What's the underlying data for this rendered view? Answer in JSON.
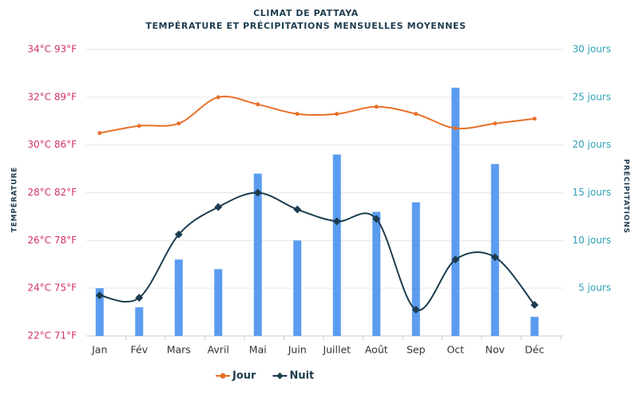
{
  "chart_data": {
    "type": "climate-combo",
    "title": "CLIMAT DE PATTAYA",
    "subtitle": "TEMPÉRATURE ET PRÉCIPITATIONS MENSUELLES MOYENNES",
    "y_label": "TEMPÉRATURE",
    "y2_label": "PRÉCIPITATIONS",
    "categories": [
      "Jan",
      "Fév",
      "Mars",
      "Avril",
      "Mai",
      "Juin",
      "Juillet",
      "Août",
      "Sep",
      "Oct",
      "Nov",
      "Déc"
    ],
    "ylim": [
      22,
      34
    ],
    "yticks": [
      {
        "value": 22,
        "label": "22°C 71°F"
      },
      {
        "value": 24,
        "label": "24°C 75°F"
      },
      {
        "value": 26,
        "label": "26°C 78°F"
      },
      {
        "value": 28,
        "label": "28°C 82°F"
      },
      {
        "value": 30,
        "label": "30°C 86°F"
      },
      {
        "value": 32,
        "label": "32°C 89°F"
      },
      {
        "value": 34,
        "label": "34°C 93°F"
      }
    ],
    "y2lim": [
      0,
      30
    ],
    "y2ticks": [
      {
        "value": 5,
        "label": "5 jours"
      },
      {
        "value": 10,
        "label": "10 jours"
      },
      {
        "value": 15,
        "label": "15 jours"
      },
      {
        "value": 20,
        "label": "20 jours"
      },
      {
        "value": 25,
        "label": "25 jours"
      },
      {
        "value": 30,
        "label": "30 jours"
      }
    ],
    "grid": true,
    "series": [
      {
        "name": "Jour",
        "kind": "line",
        "color": "#e8702a",
        "values": [
          30.5,
          30.8,
          30.9,
          32.0,
          31.7,
          31.3,
          31.3,
          31.6,
          31.3,
          30.7,
          30.9,
          31.1
        ]
      },
      {
        "name": "Nuit",
        "kind": "line",
        "color": "#1d3c4f",
        "values": [
          23.7,
          23.6,
          26.25,
          27.4,
          28.0,
          27.3,
          26.8,
          26.9,
          23.1,
          25.2,
          25.3,
          23.3
        ]
      },
      {
        "kind": "bar",
        "axis": "y2",
        "color": "#5b9cf0",
        "values": [
          5,
          3,
          8,
          7,
          17,
          10,
          19,
          13,
          14,
          26,
          18,
          2
        ]
      }
    ]
  }
}
